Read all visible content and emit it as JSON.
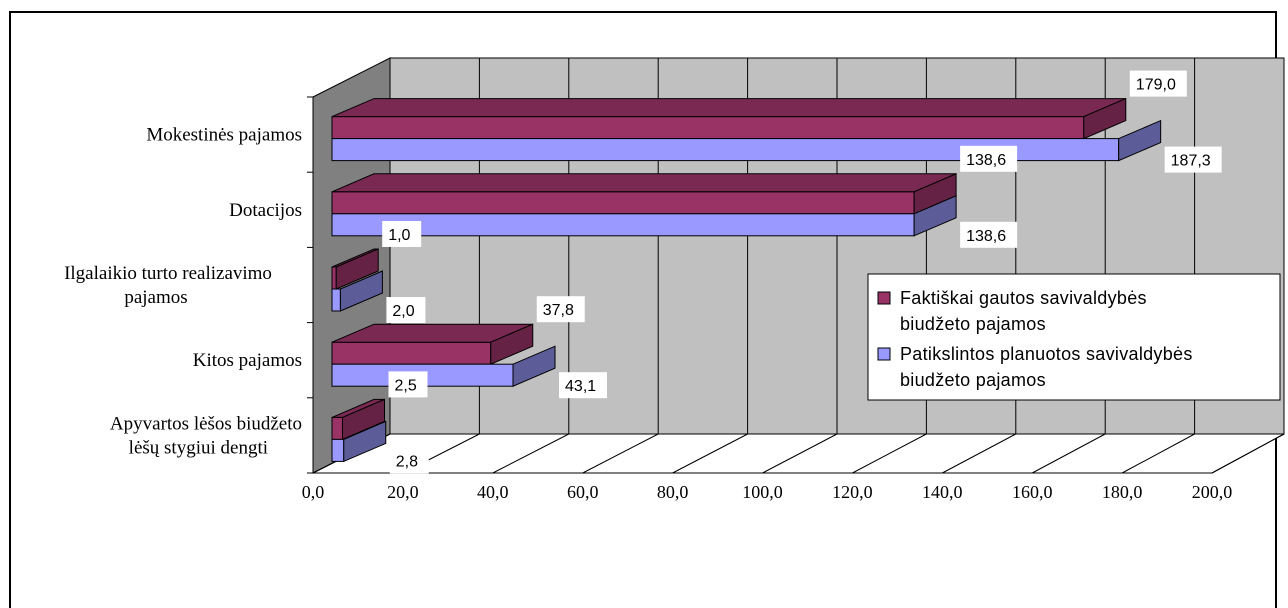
{
  "chart_data": {
    "type": "bar",
    "orientation": "horizontal",
    "style": "3d-clustered",
    "categories": [
      "Mokestinės pajamos",
      "Dotacijos",
      "Ilgalaikio turto realizavimo pajamos",
      "Kitos pajamos",
      "Apyvartos lėšos biudžeto lėšų stygiui dengti"
    ],
    "category_lines": [
      [
        "Mokestinės pajamos"
      ],
      [
        "Dotacijos"
      ],
      [
        "Ilgalaikio turto realizavimo",
        "pajamos"
      ],
      [
        "Kitos pajamos"
      ],
      [
        "Apyvartos lėšos biudžeto",
        "lėšų stygiui dengti"
      ]
    ],
    "series": [
      {
        "name": "Faktiškai gautos savivaldybės biudžeto pajamos",
        "legend_lines": [
          "Faktiškai gautos savivaldybės",
          "biudžeto pajamos"
        ],
        "values": [
          179.0,
          138.6,
          1.0,
          37.8,
          2.5
        ],
        "labels": [
          "179,0",
          "138,6",
          "1,0",
          "37,8",
          "2,5"
        ],
        "color": "#993366",
        "top_color": "#7a2952",
        "side_color": "#662244"
      },
      {
        "name": "Patikslintos planuotos savivaldybės biudžeto pajamos",
        "legend_lines": [
          "Patikslintos planuotos savivaldybės",
          "biudžeto pajamos"
        ],
        "values": [
          187.3,
          138.6,
          2.0,
          43.1,
          2.8
        ],
        "labels": [
          "187,3",
          "138,6",
          "2,0",
          "43,1",
          "2,8"
        ],
        "color": "#9999ff",
        "top_color": "#7a7acc",
        "side_color": "#5c5c99"
      }
    ],
    "xlim": [
      0,
      200
    ],
    "x_ticks": [
      "0,0",
      "20,0",
      "40,0",
      "60,0",
      "80,0",
      "100,0",
      "120,0",
      "140,0",
      "160,0",
      "180,0",
      "200,0"
    ],
    "grid": true,
    "legend_position": "right",
    "wall_color": "#c0c0c0",
    "side_wall_color": "#808080"
  }
}
